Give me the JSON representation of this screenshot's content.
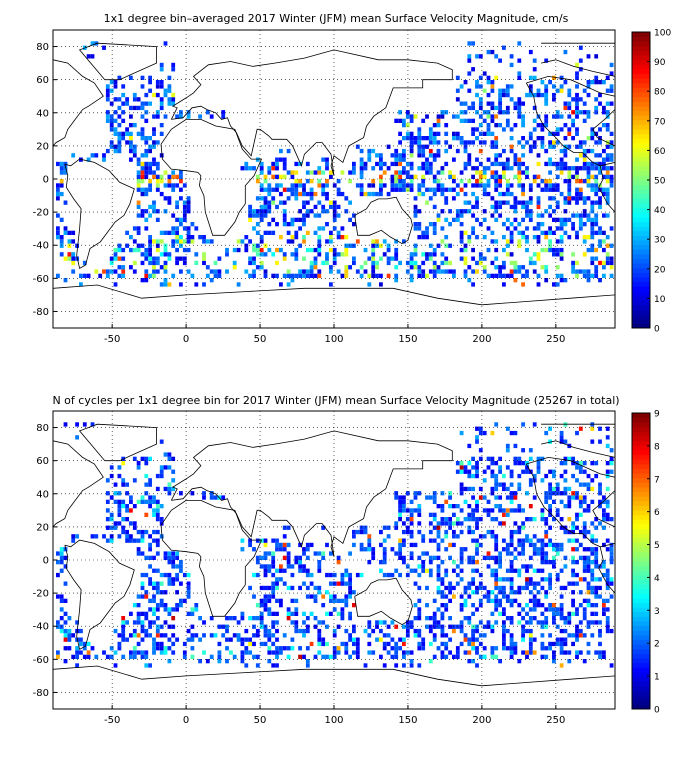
{
  "chart_data": [
    {
      "type": "heatmap",
      "title": "1x1 degree bin–averaged 2017 Winter (JFM) mean Surface Velocity Magnitude, cm/s",
      "xlabel": "",
      "ylabel": "",
      "xlim": [
        -90,
        290
      ],
      "ylim": [
        -90,
        90
      ],
      "x_ticks": [
        -50,
        0,
        50,
        100,
        150,
        200,
        250
      ],
      "y_ticks": [
        80,
        60,
        40,
        20,
        0,
        -20,
        -40,
        -60,
        -80
      ],
      "grid": true,
      "colorbar": {
        "min": 0,
        "max": 100,
        "ticks": [
          0,
          10,
          20,
          30,
          40,
          50,
          60,
          70,
          80,
          90,
          100
        ],
        "colormap": "jet",
        "placement": "right"
      },
      "grid_cells_note": "",
      "colors": {
        "background": "#ffffff",
        "land_outline": "#000000",
        "grid": "#000000"
      }
    },
    {
      "type": "heatmap",
      "title": "N of cycles per 1x1 degree bin for 2017 Winter (JFM) mean Surface Velocity Magnitude (25267 in total)",
      "xlabel": "",
      "ylabel": "",
      "xlim": [
        -90,
        290
      ],
      "ylim": [
        -90,
        90
      ],
      "x_ticks": [
        -50,
        0,
        50,
        100,
        150,
        200,
        250
      ],
      "y_ticks": [
        80,
        60,
        40,
        20,
        0,
        -20,
        -40,
        -60,
        -80
      ],
      "grid": true,
      "colorbar": {
        "min": 0,
        "max": 9,
        "ticks": [
          0,
          1,
          2,
          3,
          4,
          5,
          6,
          7,
          8,
          9
        ],
        "colormap": "jet",
        "placement": "right"
      },
      "colors": {
        "background": "#ffffff",
        "land_outline": "#000000",
        "grid": "#000000"
      }
    }
  ]
}
